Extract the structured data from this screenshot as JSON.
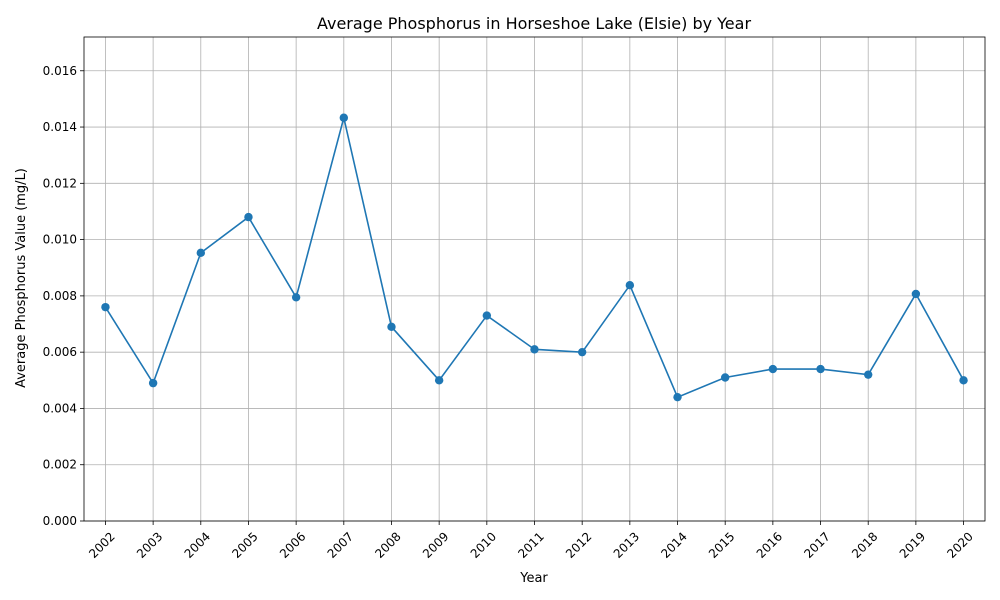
{
  "chart_data": {
    "type": "line",
    "title": "Average Phosphorus in Horseshoe Lake (Elsie) by Year",
    "xlabel": "Year",
    "ylabel": "Average Phosphorus Value (mg/L)",
    "categories": [
      "2002",
      "2003",
      "2004",
      "2005",
      "2006",
      "2007",
      "2008",
      "2009",
      "2010",
      "2011",
      "2012",
      "2013",
      "2014",
      "2015",
      "2016",
      "2017",
      "2018",
      "2019",
      "2020"
    ],
    "series": [
      {
        "values": [
          0.0076,
          0.0049,
          0.00953,
          0.0108,
          0.00795,
          0.01433,
          0.0069,
          0.005,
          0.0073,
          0.0061,
          0.006,
          0.00838,
          0.0044,
          0.0051,
          0.0054,
          0.0054,
          0.0052,
          0.00807,
          0.005
        ],
        "color": "#1f77b4"
      }
    ],
    "ylim": [
      0,
      0.0172
    ],
    "yticks": [
      "0.000",
      "0.002",
      "0.004",
      "0.006",
      "0.008",
      "0.010",
      "0.012",
      "0.014",
      "0.016"
    ],
    "grid": true,
    "x_tick_rotation": -45
  }
}
